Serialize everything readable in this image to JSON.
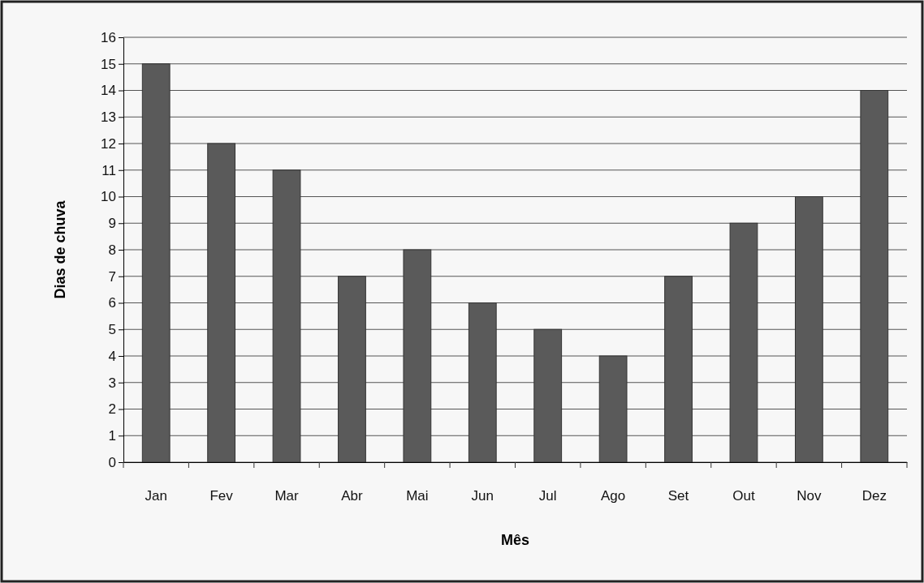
{
  "chart_data": {
    "type": "bar",
    "xlabel": "Mês",
    "ylabel": "Dias de chuva",
    "categories": [
      "Jan",
      "Fev",
      "Mar",
      "Abr",
      "Mai",
      "Jun",
      "Jul",
      "Ago",
      "Set",
      "Out",
      "Nov",
      "Dez"
    ],
    "values": [
      15,
      12,
      11,
      7,
      8,
      6,
      5,
      4,
      7,
      9,
      10,
      14
    ],
    "color": "#5a5a5a",
    "ylim": [
      0,
      16
    ],
    "yticks": [
      0,
      1,
      2,
      3,
      4,
      5,
      6,
      7,
      8,
      9,
      10,
      11,
      12,
      13,
      14,
      15,
      16
    ],
    "grid": "y"
  }
}
